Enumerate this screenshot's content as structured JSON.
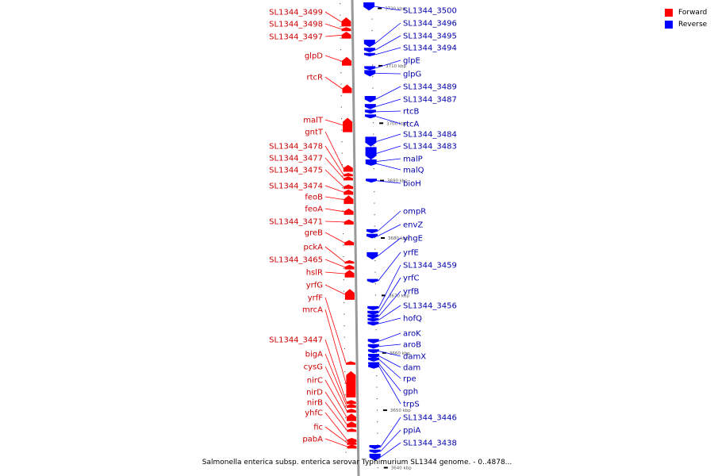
{
  "legend": {
    "forward": {
      "label": "Forward",
      "color": "#ff0000"
    },
    "reverse": {
      "label": "Reverse",
      "color": "#0000ff"
    }
  },
  "caption": "Salmonella enterica subsp. enterica serovar Typhimurium SL1344 genome. - 0..4878...",
  "ruler": [
    {
      "kbp": 3720,
      "label": "3720 kbp"
    },
    {
      "kbp": 3710,
      "label": "3710 kbp"
    },
    {
      "kbp": 3700,
      "label": "3700 kbp"
    },
    {
      "kbp": 3690,
      "label": "3690 kbp"
    },
    {
      "kbp": 3680,
      "label": "3680 kbp"
    },
    {
      "kbp": 3670,
      "label": "3670 kbp"
    },
    {
      "kbp": 3660,
      "label": "3660 kbp"
    },
    {
      "kbp": 3650,
      "label": "3650 kbp"
    },
    {
      "kbp": 3640,
      "label": "3640 kbp"
    }
  ],
  "forward_genes": [
    {
      "name": "SL1344_3499",
      "start_kbp": 3718.5,
      "end_kbp": 3716.9
    },
    {
      "name": "SL1344_3498",
      "start_kbp": 3716.8,
      "end_kbp": 3716.1
    },
    {
      "name": "SL1344_3497",
      "start_kbp": 3716.0,
      "end_kbp": 3714.8
    },
    {
      "name": "glpD",
      "start_kbp": 3711.6,
      "end_kbp": 3710.1
    },
    {
      "name": "rtcR",
      "start_kbp": 3706.8,
      "end_kbp": 3705.3
    },
    {
      "name": "malT",
      "start_kbp": 3701.0,
      "end_kbp": 3698.5
    },
    {
      "name": "gntT",
      "start_kbp": 3692.8,
      "end_kbp": 3691.6
    },
    {
      "name": "SL1344_3478",
      "start_kbp": 3691.4,
      "end_kbp": 3690.8
    },
    {
      "name": "SL1344_3477",
      "start_kbp": 3690.7,
      "end_kbp": 3690.2
    },
    {
      "name": "SL1344_3475",
      "start_kbp": 3689.4,
      "end_kbp": 3688.6
    },
    {
      "name": "SL1344_3474",
      "start_kbp": 3688.5,
      "end_kbp": 3687.6
    },
    {
      "name": "feoB",
      "start_kbp": 3687.5,
      "end_kbp": 3686.0
    },
    {
      "name": "feoA",
      "start_kbp": 3685.2,
      "end_kbp": 3684.1
    },
    {
      "name": "SL1344_3471",
      "start_kbp": 3683.3,
      "end_kbp": 3682.4
    },
    {
      "name": "greB",
      "start_kbp": 3679.7,
      "end_kbp": 3678.8
    },
    {
      "name": "pckA",
      "start_kbp": 3676.2,
      "end_kbp": 3675.6
    },
    {
      "name": "SL1344_3465",
      "start_kbp": 3675.4,
      "end_kbp": 3674.6
    },
    {
      "name": "hslR",
      "start_kbp": 3674.5,
      "end_kbp": 3673.2
    },
    {
      "name": "yrfG",
      "start_kbp": 3671.2,
      "end_kbp": 3669.3
    },
    {
      "name": "yrfF",
      "start_kbp": 3658.6,
      "end_kbp": 3658.0
    },
    {
      "name": "mrcA",
      "start_kbp": 3656.9,
      "end_kbp": 3652.3
    },
    {
      "name": "SL1344_3447",
      "start_kbp": 3651.7,
      "end_kbp": 3651.3
    },
    {
      "name": "bigA",
      "start_kbp": 3651.0,
      "end_kbp": 3650.7
    },
    {
      "name": "cysG",
      "start_kbp": 3650.2,
      "end_kbp": 3649.8
    },
    {
      "name": "nirC",
      "start_kbp": 3649.5,
      "end_kbp": 3648.2
    },
    {
      "name": "nirD",
      "start_kbp": 3648.1,
      "end_kbp": 3647.1
    },
    {
      "name": "nirB",
      "start_kbp": 3646.9,
      "end_kbp": 3646.3
    },
    {
      "name": "yhfC",
      "start_kbp": 3645.0,
      "end_kbp": 3644.8
    },
    {
      "name": "fic",
      "start_kbp": 3644.6,
      "end_kbp": 3644.2
    },
    {
      "name": "pabA",
      "start_kbp": 3644.1,
      "end_kbp": 3643.4
    }
  ],
  "reverse_genes": [
    {
      "name": "SL1344_3500",
      "start_kbp": 3721.1,
      "end_kbp": 3719.7
    },
    {
      "name": "SL1344_3496",
      "start_kbp": 3714.6,
      "end_kbp": 3713.3
    },
    {
      "name": "SL1344_3495",
      "start_kbp": 3713.2,
      "end_kbp": 3712.4
    },
    {
      "name": "SL1344_3494",
      "start_kbp": 3712.3,
      "end_kbp": 3711.7
    },
    {
      "name": "glpE",
      "start_kbp": 3709.9,
      "end_kbp": 3709.4
    },
    {
      "name": "glpG",
      "start_kbp": 3709.3,
      "end_kbp": 3708.2
    },
    {
      "name": "SL1344_3489",
      "start_kbp": 3704.8,
      "end_kbp": 3703.7
    },
    {
      "name": "SL1344_3487",
      "start_kbp": 3703.4,
      "end_kbp": 3702.5
    },
    {
      "name": "rtcB",
      "start_kbp": 3702.4,
      "end_kbp": 3701.7
    },
    {
      "name": "rtcA",
      "start_kbp": 3701.6,
      "end_kbp": 3700.9
    },
    {
      "name": "SL1344_3484",
      "start_kbp": 3697.7,
      "end_kbp": 3696.0
    },
    {
      "name": "SL1344_3483",
      "start_kbp": 3695.9,
      "end_kbp": 3693.7
    },
    {
      "name": "malP",
      "start_kbp": 3693.6,
      "end_kbp": 3693.2
    },
    {
      "name": "malQ",
      "start_kbp": 3693.1,
      "end_kbp": 3692.9
    },
    {
      "name": "bioH",
      "start_kbp": 3690.4,
      "end_kbp": 3689.7
    },
    {
      "name": "ompR",
      "start_kbp": 3681.6,
      "end_kbp": 3680.9
    },
    {
      "name": "envZ",
      "start_kbp": 3680.8,
      "end_kbp": 3680.0
    },
    {
      "name": "yhgE",
      "start_kbp": 3677.6,
      "end_kbp": 3676.3
    },
    {
      "name": "yrfE",
      "start_kbp": 3672.8,
      "end_kbp": 3672.4
    },
    {
      "name": "SL1344_3459",
      "start_kbp": 3668.2,
      "end_kbp": 3667.5
    },
    {
      "name": "yrfC",
      "start_kbp": 3667.4,
      "end_kbp": 3666.7
    },
    {
      "name": "yrfB",
      "start_kbp": 3666.6,
      "end_kbp": 3666.2
    },
    {
      "name": "SL1344_3456",
      "start_kbp": 3666.1,
      "end_kbp": 3665.5
    },
    {
      "name": "hofQ",
      "start_kbp": 3665.4,
      "end_kbp": 3664.9
    },
    {
      "name": "aroK",
      "start_kbp": 3662.5,
      "end_kbp": 3661.7
    },
    {
      "name": "aroB",
      "start_kbp": 3661.6,
      "end_kbp": 3660.8
    },
    {
      "name": "damX",
      "start_kbp": 3660.7,
      "end_kbp": 3660.0
    },
    {
      "name": "dam",
      "start_kbp": 3659.9,
      "end_kbp": 3659.1
    },
    {
      "name": "rpe",
      "start_kbp": 3659.0,
      "end_kbp": 3658.8
    },
    {
      "name": "gph",
      "start_kbp": 3658.3,
      "end_kbp": 3657.9
    },
    {
      "name": "trpS",
      "start_kbp": 3657.8,
      "end_kbp": 3657.5
    },
    {
      "name": "SL1344_3446",
      "start_kbp": 3644.0,
      "end_kbp": 3643.3
    },
    {
      "name": "ppiA",
      "start_kbp": 3643.2,
      "end_kbp": 3642.6
    },
    {
      "name": "SL1344_3438",
      "start_kbp": 3642.5,
      "end_kbp": 3641.3
    }
  ]
}
